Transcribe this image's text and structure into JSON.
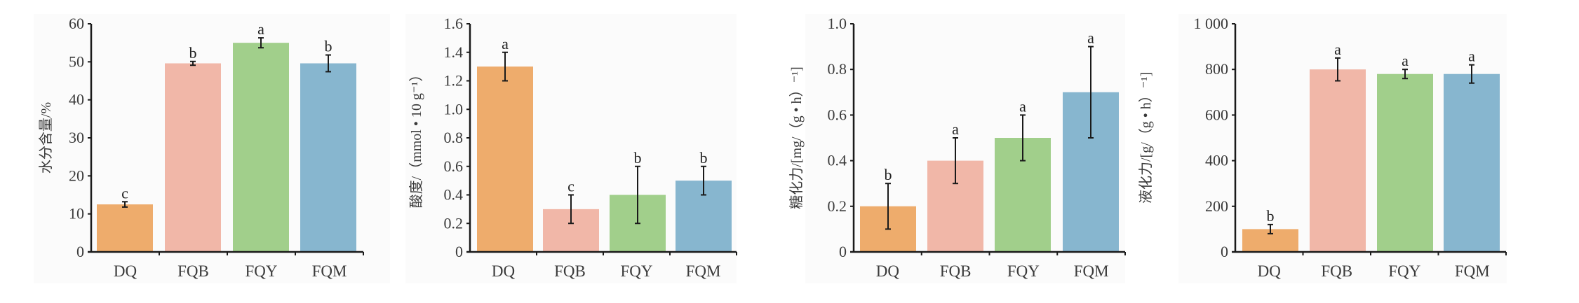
{
  "colors": {
    "DQ": "#eeac6c",
    "FQB": "#f1b7a8",
    "FQY": "#a1cf8b",
    "FQM": "#87b6cf"
  },
  "chart_data": [
    {
      "type": "bar",
      "title": "",
      "ylabel": "水分含量/%",
      "categories": [
        "DQ",
        "FQB",
        "FQY",
        "FQM"
      ],
      "values": [
        12.5,
        49.6,
        55.0,
        49.6
      ],
      "errors": [
        0.7,
        0.5,
        1.3,
        2.2
      ],
      "significance": [
        "c",
        "b",
        "a",
        "b"
      ],
      "ylim": [
        0,
        60
      ],
      "yticks": [
        0,
        10,
        20,
        30,
        40,
        50,
        60
      ],
      "ytick_labels": [
        "0",
        "10",
        "20",
        "30",
        "40",
        "50",
        "60"
      ]
    },
    {
      "type": "bar",
      "title": "",
      "ylabel": "酸度/（mmol • 10 g⁻¹）",
      "categories": [
        "DQ",
        "FQB",
        "FQY",
        "FQM"
      ],
      "values": [
        1.3,
        0.3,
        0.4,
        0.5
      ],
      "errors": [
        0.1,
        0.1,
        0.2,
        0.1
      ],
      "significance": [
        "a",
        "c",
        "b",
        "b"
      ],
      "ylim": [
        0,
        1.6
      ],
      "yticks": [
        0,
        0.2,
        0.4,
        0.6,
        0.8,
        1.0,
        1.2,
        1.4,
        1.6
      ],
      "ytick_labels": [
        "0",
        "0.2",
        "0.4",
        "0.6",
        "0.8",
        "1.0",
        "1.2",
        "1.4",
        "1.6"
      ]
    },
    {
      "type": "bar",
      "title": "",
      "ylabel": "糖化力/[mg/（g • h）⁻¹]",
      "categories": [
        "DQ",
        "FQB",
        "FQY",
        "FQM"
      ],
      "values": [
        0.2,
        0.4,
        0.5,
        0.7
      ],
      "errors": [
        0.1,
        0.1,
        0.1,
        0.2
      ],
      "significance": [
        "b",
        "a",
        "a",
        "a"
      ],
      "ylim": [
        0,
        1.0
      ],
      "yticks": [
        0,
        0.2,
        0.4,
        0.6,
        0.8,
        1.0
      ],
      "ytick_labels": [
        "0",
        "0.2",
        "0.4",
        "0.6",
        "0.8",
        "1.0"
      ]
    },
    {
      "type": "bar",
      "title": "",
      "ylabel": "液化力/[g/（g • h）⁻¹]",
      "categories": [
        "DQ",
        "FQB",
        "FQY",
        "FQM"
      ],
      "values": [
        100,
        800,
        780,
        780
      ],
      "errors": [
        20,
        50,
        20,
        40
      ],
      "significance": [
        "b",
        "a",
        "a",
        "a"
      ],
      "ylim": [
        0,
        1000
      ],
      "yticks": [
        0,
        200,
        400,
        600,
        800,
        1000
      ],
      "ytick_labels": [
        "0",
        "200",
        "400",
        "600",
        "800",
        "1 000"
      ]
    }
  ]
}
